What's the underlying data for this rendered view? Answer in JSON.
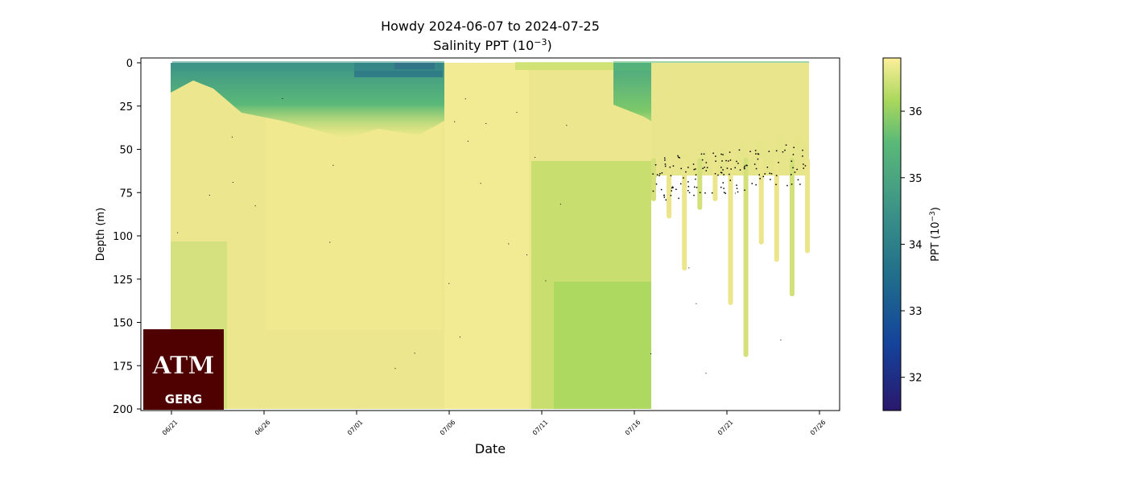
{
  "chart_data": {
    "type": "heatmap",
    "title_line1": "Howdy 2024-06-07 to 2024-07-25",
    "title_line2_prefix": "Salinity PPT (10",
    "title_line2_exp": "−3",
    "title_line2_suffix": ")",
    "xlabel": "Date",
    "ylabel": "Depth (m)",
    "x_ticks": [
      "06/21",
      "06/26",
      "07/01",
      "07/06",
      "07/11",
      "07/16",
      "07/21",
      "07/26"
    ],
    "y_ticks": [
      0,
      25,
      50,
      75,
      100,
      125,
      150,
      175,
      200
    ],
    "ylim": [
      0,
      200
    ],
    "y_inverted": true,
    "colorbar": {
      "label_prefix": "PPT (10",
      "label_exp": "−3",
      "label_suffix": ")",
      "ticks": [
        32,
        33,
        34,
        35,
        36
      ],
      "range": [
        31.5,
        36.8
      ],
      "colormap": "haline",
      "colors": [
        "#2a186c",
        "#14439c",
        "#206e8b",
        "#3c9387",
        "#5ab978",
        "#aad85c",
        "#fdef9a"
      ]
    },
    "deep_profile_end": "07/16",
    "shallow_profile_bottoms_m": [
      80,
      90,
      120,
      85,
      80,
      140,
      170,
      105,
      115,
      135,
      110
    ],
    "logo_top": "ATM",
    "logo_bottom": "GERG"
  }
}
